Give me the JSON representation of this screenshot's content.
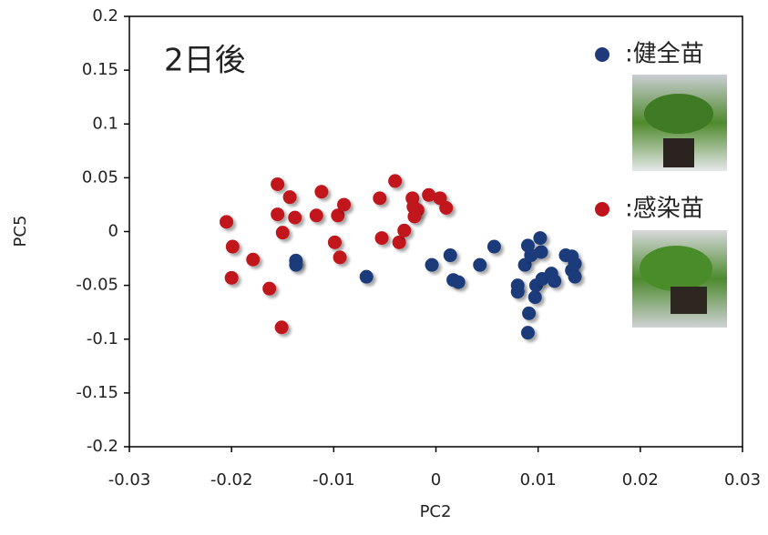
{
  "chart_data": {
    "type": "scatter",
    "title": "2日後",
    "xlabel": "PC2",
    "ylabel": "PC5",
    "xlim": [
      -0.03,
      0.03
    ],
    "xticks": [
      -0.03,
      -0.02,
      -0.01,
      0,
      0.01,
      0.02,
      0.03
    ],
    "ylim": [
      -0.2,
      0.2
    ],
    "yticks": [
      0.2,
      0.15,
      0.1,
      0.05,
      0,
      -0.05,
      -0.1,
      -0.15,
      -0.2
    ],
    "series": [
      {
        "name": ":健全苗",
        "color": "#1f3a7a",
        "x": [
          -0.0137,
          -0.0137,
          -0.0068,
          -0.0004,
          0.0014,
          0.0017,
          0.0022,
          0.0043,
          0.0057,
          0.008,
          0.008,
          0.0087,
          0.009,
          0.0093,
          0.0091,
          0.009,
          0.0098,
          0.0097,
          0.0102,
          0.0103,
          0.0104,
          0.0113,
          0.0116,
          0.0127,
          0.0133,
          0.0133,
          0.0136,
          0.0136
        ],
        "values": [
          -0.027,
          -0.031,
          -0.042,
          -0.031,
          -0.022,
          -0.045,
          -0.047,
          -0.031,
          -0.014,
          -0.05,
          -0.056,
          -0.031,
          -0.013,
          -0.022,
          -0.076,
          -0.094,
          -0.05,
          -0.061,
          -0.006,
          -0.019,
          -0.044,
          -0.039,
          -0.046,
          -0.022,
          -0.023,
          -0.036,
          -0.03,
          -0.042
        ]
      },
      {
        "name": ":感染苗",
        "color": "#c0141c",
        "x": [
          -0.0205,
          -0.0199,
          -0.02,
          -0.0179,
          -0.0163,
          -0.0151,
          -0.0155,
          -0.0155,
          -0.015,
          -0.0143,
          -0.0138,
          -0.0112,
          -0.0117,
          -0.0096,
          -0.009,
          -0.0099,
          -0.0094,
          -0.0055,
          -0.0053,
          -0.004,
          -0.0036,
          -0.0031,
          -0.0023,
          -0.0022,
          -0.0018,
          -0.0007,
          0.0004,
          0.001,
          -0.0021
        ],
        "values": [
          0.009,
          -0.014,
          -0.043,
          -0.026,
          -0.053,
          -0.089,
          0.044,
          0.016,
          -0.001,
          0.032,
          0.013,
          0.037,
          0.015,
          0.015,
          0.025,
          -0.01,
          -0.024,
          0.031,
          -0.006,
          0.047,
          -0.01,
          0.001,
          0.031,
          0.023,
          0.02,
          0.034,
          0.031,
          0.022,
          0.014
        ]
      }
    ]
  }
}
